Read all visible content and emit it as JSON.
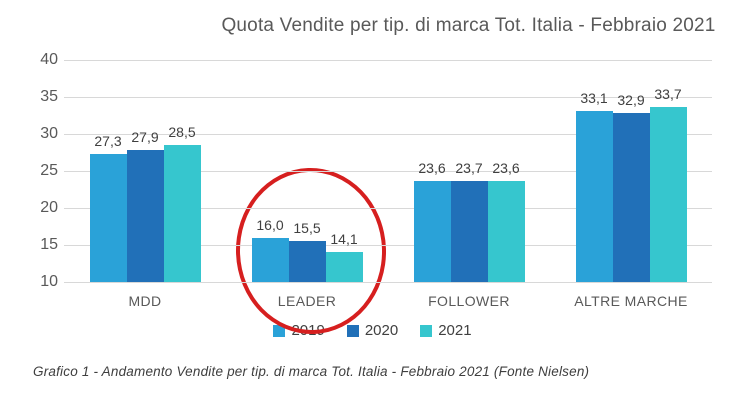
{
  "figure": {
    "title": "Quota Vendite per tip. di marca Tot. Italia - Febbraio 2021",
    "caption": "Grafico 1 - Andamento Vendite per tip. di marca Tot. Italia - Febbraio 2021 (Fonte Nielsen)"
  },
  "chart_data": {
    "type": "bar",
    "title": "Quota Vendite per tip. di marca Tot. Italia - Febbraio 2021",
    "categories": [
      "MDD",
      "LEADER",
      "FOLLOWER",
      "ALTRE MARCHE"
    ],
    "series": [
      {
        "name": "2019",
        "color": "#2aa2d8",
        "values": [
          27.3,
          16.0,
          23.6,
          33.1
        ],
        "labels": [
          "27,3",
          "16,0",
          "23,6",
          "33,1"
        ]
      },
      {
        "name": "2020",
        "color": "#2170b8",
        "values": [
          27.9,
          15.5,
          23.7,
          32.9
        ],
        "labels": [
          "27,9",
          "15,5",
          "23,7",
          "32,9"
        ]
      },
      {
        "name": "2021",
        "color": "#36c6ce",
        "values": [
          28.5,
          14.1,
          23.6,
          33.7
        ],
        "labels": [
          "28,5",
          "14,1",
          "23,6",
          "33,7"
        ]
      }
    ],
    "ylabel": "",
    "xlabel": "",
    "ylim": [
      10,
      40
    ],
    "yticks": [
      10,
      15,
      20,
      25,
      30,
      35,
      40
    ],
    "grid": true,
    "legend_position": "bottom",
    "decimal_separator": ",",
    "annotation": {
      "shape": "ellipse",
      "color": "#d61f1f",
      "target_category": "LEADER"
    }
  }
}
